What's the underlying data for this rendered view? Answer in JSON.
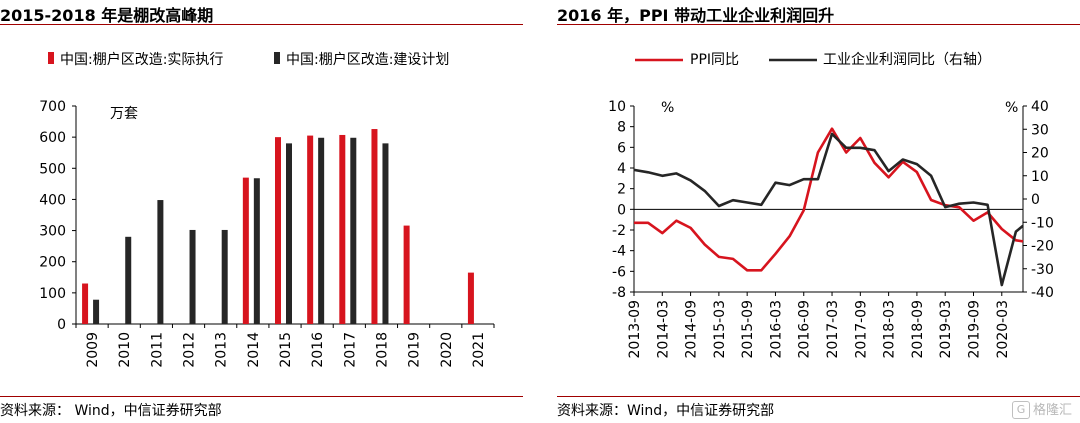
{
  "left": {
    "title": "2015-2018 年是棚改高峰期",
    "source": "资料来源：  Wind，中信证券研究部",
    "chart_data": {
      "type": "bar",
      "unit_label": "万套",
      "categories": [
        "2009",
        "2010",
        "2011",
        "2012",
        "2013",
        "2014",
        "2015",
        "2016",
        "2017",
        "2018",
        "2019",
        "2020",
        "2021"
      ],
      "series": [
        {
          "name": "中国:棚户区改造:实际执行",
          "color": "#d7141e",
          "values": [
            130,
            null,
            null,
            null,
            null,
            470,
            600,
            605,
            607,
            626,
            316,
            null,
            165
          ]
        },
        {
          "name": "中国:棚户区改造:建设计划",
          "color": "#262626",
          "values": [
            78,
            280,
            398,
            302,
            302,
            468,
            580,
            598,
            598,
            580,
            null,
            null,
            null
          ]
        }
      ],
      "ylim": [
        0,
        700
      ],
      "yticks": [
        0,
        100,
        200,
        300,
        400,
        500,
        600,
        700
      ],
      "legend_position": "top"
    }
  },
  "right": {
    "title": "2016 年，PPI 带动工业企业利润回升",
    "source": "资料来源：Wind，中信证券研究部",
    "watermark": "格隆汇",
    "chart_data": {
      "type": "line",
      "left_unit": "%",
      "right_unit": "%",
      "x_tick_labels": [
        "2013-09",
        "2014-03",
        "2014-09",
        "2015-03",
        "2015-09",
        "2016-03",
        "2016-09",
        "2017-03",
        "2017-09",
        "2018-03",
        "2018-09",
        "2019-03",
        "2019-09",
        "2020-03"
      ],
      "x_range": [
        0,
        27.5
      ],
      "y_left": {
        "range": [
          -8,
          10
        ],
        "ticks": [
          -8,
          -6,
          -4,
          -2,
          0,
          2,
          4,
          6,
          8,
          10
        ]
      },
      "y_right": {
        "range": [
          -40,
          40
        ],
        "ticks": [
          -40,
          -30,
          -20,
          -10,
          0,
          10,
          20,
          30,
          40
        ]
      },
      "legend_position": "top",
      "series": [
        {
          "name": "PPI同比",
          "axis": "left",
          "color": "#d7141e",
          "x": [
            0,
            1,
            2,
            3,
            4,
            5,
            6,
            7,
            8,
            9,
            10,
            11,
            12,
            13,
            14,
            15,
            16,
            17,
            18,
            19,
            20,
            21,
            22,
            23,
            24,
            25,
            26,
            27,
            27.5
          ],
          "y": [
            -1.3,
            -1.3,
            -2.3,
            -1.1,
            -1.8,
            -3.4,
            -4.6,
            -4.8,
            -5.9,
            -5.9,
            -4.3,
            -2.6,
            -0.1,
            5.5,
            7.8,
            5.5,
            6.9,
            4.5,
            3.1,
            4.6,
            3.6,
            0.9,
            0.4,
            0.2,
            -1.1,
            -0.3,
            -1.9,
            -3.0,
            -3.1
          ]
        },
        {
          "name": "工业企业利润同比（右轴）",
          "axis": "right",
          "color": "#262626",
          "x": [
            0,
            1,
            2,
            3,
            4,
            5,
            6,
            7,
            8,
            9,
            10,
            11,
            12,
            13,
            14,
            15,
            16,
            17,
            18,
            19,
            20,
            21,
            22,
            23,
            24,
            25,
            26,
            27,
            27.5
          ],
          "y": [
            12.5,
            11.5,
            10.0,
            11.0,
            8.0,
            3.5,
            -3.0,
            -0.5,
            -1.5,
            -2.5,
            7.0,
            6.0,
            8.5,
            8.5,
            28.0,
            22.0,
            22.0,
            21.0,
            12.0,
            17.0,
            15.0,
            10.0,
            -3.5,
            -2.0,
            -1.5,
            -2.5,
            -37.0,
            -14.0,
            -11.5
          ]
        }
      ]
    }
  }
}
